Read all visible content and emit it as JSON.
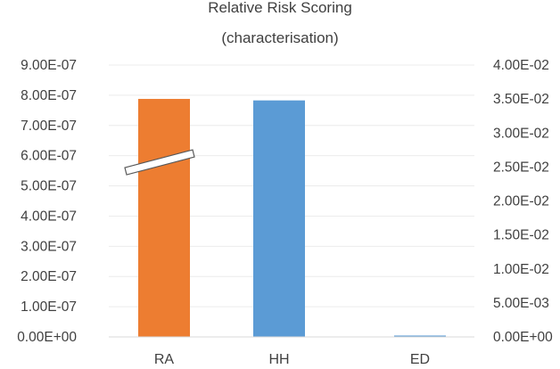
{
  "chart_data": {
    "type": "bar",
    "title_line1": "Relative Risk Scoring",
    "title_line2": "(characterisation)",
    "categories": [
      "RA",
      "HH",
      "ED"
    ],
    "series": [
      {
        "axis": "left",
        "values": [
          7.88e-07,
          null,
          null
        ],
        "color": "#ED7D31"
      },
      {
        "axis": "right",
        "values": [
          null,
          0.0348,
          0.0002
        ],
        "color": "#5B9BD5"
      }
    ],
    "y_left": {
      "ticks": [
        "0.00E+00",
        "1.00E-07",
        "2.00E-07",
        "3.00E-07",
        "4.00E-07",
        "5.00E-07",
        "6.00E-07",
        "7.00E-07",
        "8.00E-07",
        "9.00E-07"
      ],
      "ylim": [
        0,
        9e-07
      ]
    },
    "y_right": {
      "ticks": [
        "0.00E+00",
        "5.00E-03",
        "1.00E-02",
        "1.50E-02",
        "2.00E-02",
        "2.50E-02",
        "3.00E-02",
        "3.50E-02",
        "4.00E-02"
      ],
      "ylim": [
        0,
        0.04
      ]
    },
    "grid": true,
    "break_marker": {
      "series_index": 0,
      "value": 5.9e-07
    }
  }
}
